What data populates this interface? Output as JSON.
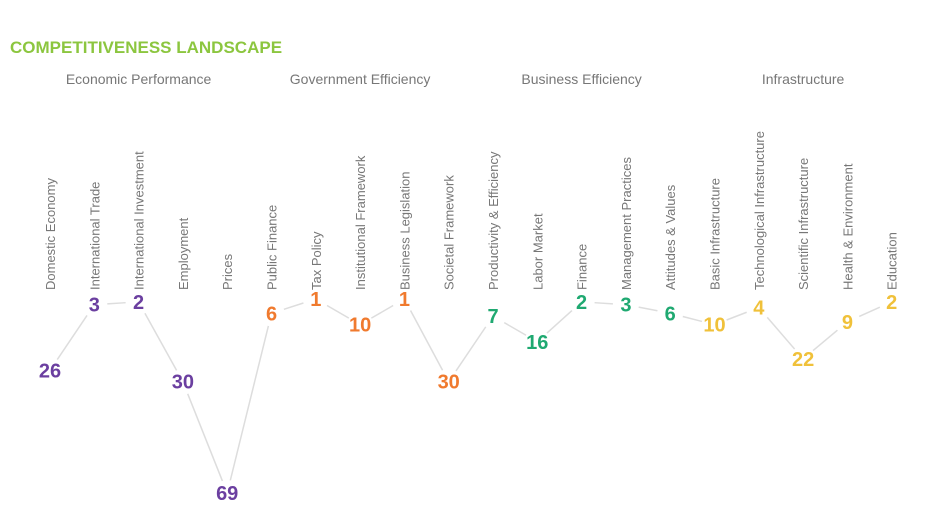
{
  "chart_data": {
    "type": "line",
    "title": "COMPETITIVENESS LANDSCAPE",
    "groups": [
      {
        "name": "Economic Performance",
        "color": "#6b3fa0"
      },
      {
        "name": "Government Efficiency",
        "color": "#f07a2e"
      },
      {
        "name": "Business Efficiency",
        "color": "#1fa971"
      },
      {
        "name": "Infrastructure",
        "color": "#f0c13a"
      }
    ],
    "categories": [
      "Domestic Economy",
      "International Trade",
      "International Investment",
      "Employment",
      "Prices",
      "Public Finance",
      "Tax Policy",
      "Institutional Framework",
      "Business Legislation",
      "Societal Framework",
      "Productivity & Efficiency",
      "Labor Market",
      "Finance",
      "Management Practices",
      "Attitudes & Values",
      "Basic Infrastructure",
      "Technological Infrastructure",
      "Scientific Infrastructure",
      "Health & Environment",
      "Education"
    ],
    "group_index": [
      0,
      0,
      0,
      0,
      0,
      1,
      1,
      1,
      1,
      1,
      2,
      2,
      2,
      2,
      2,
      3,
      3,
      3,
      3,
      3
    ],
    "values": [
      26,
      3,
      2,
      30,
      69,
      6,
      1,
      10,
      1,
      30,
      7,
      16,
      2,
      3,
      6,
      10,
      4,
      22,
      9,
      2
    ],
    "line_color": "#dddddd",
    "title_color": "#8cc63f",
    "label_color": "#777777"
  }
}
